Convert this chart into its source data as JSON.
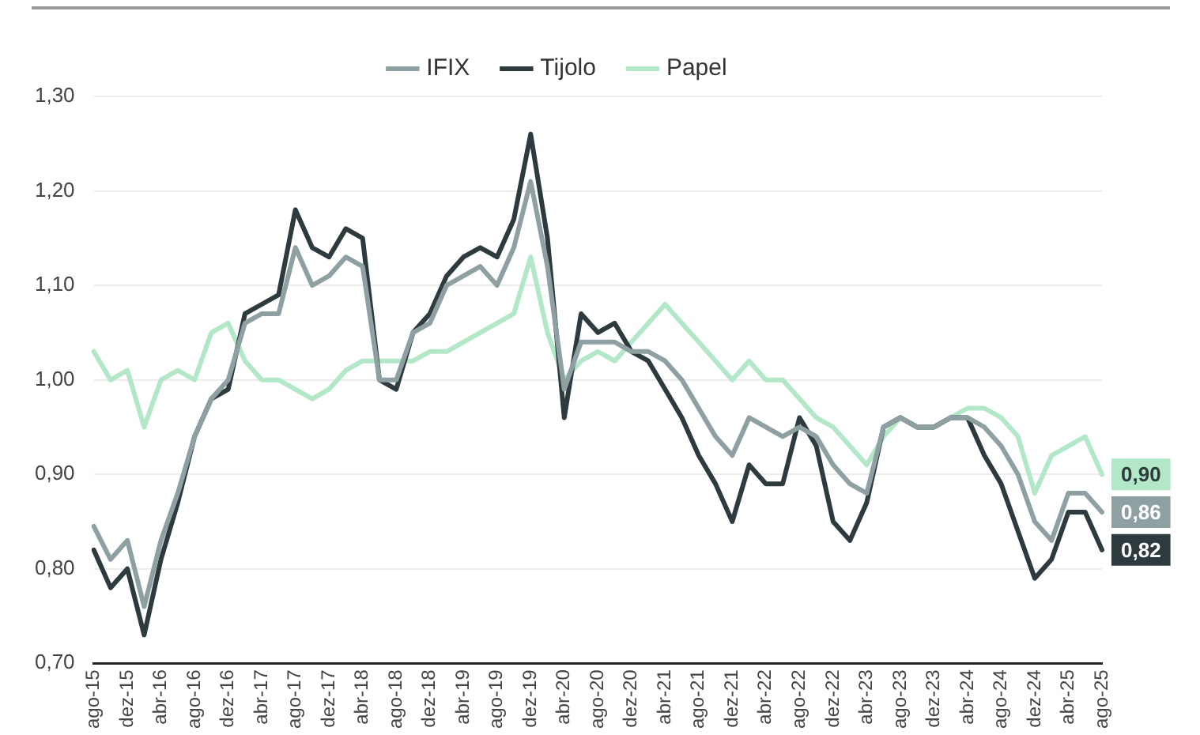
{
  "chart_data": {
    "type": "line",
    "categories": [
      "ago-15",
      null,
      "dez-15",
      null,
      "abr-16",
      null,
      "ago-16",
      null,
      "dez-16",
      null,
      "abr-17",
      null,
      "ago-17",
      null,
      "dez-17",
      null,
      "abr-18",
      null,
      "ago-18",
      null,
      "dez-18",
      null,
      "abr-19",
      null,
      "ago-19",
      null,
      "dez-19",
      null,
      "abr-20",
      null,
      "ago-20",
      null,
      "dez-20",
      null,
      "abr-21",
      null,
      "ago-21",
      null,
      "dez-21",
      null,
      "abr-22",
      null,
      "ago-22",
      null,
      "dez-22",
      null,
      "abr-23",
      null,
      "ago-23",
      null,
      "dez-23",
      null,
      "abr-24",
      null,
      "ago-24",
      null,
      "dez-24",
      null,
      "abr-25",
      null,
      "ago-25"
    ],
    "series": [
      {
        "name": "IFIX",
        "color": "#8fa0a3",
        "values": [
          0.845,
          0.81,
          0.83,
          0.76,
          0.83,
          0.88,
          0.94,
          0.98,
          1.0,
          1.06,
          1.07,
          1.07,
          1.14,
          1.1,
          1.11,
          1.13,
          1.12,
          1.0,
          1.0,
          1.05,
          1.06,
          1.1,
          1.11,
          1.12,
          1.1,
          1.14,
          1.21,
          1.12,
          0.99,
          1.04,
          1.04,
          1.04,
          1.03,
          1.03,
          1.02,
          1.0,
          0.97,
          0.94,
          0.92,
          0.96,
          0.95,
          0.94,
          0.95,
          0.94,
          0.91,
          0.89,
          0.88,
          0.95,
          0.96,
          0.95,
          0.95,
          0.96,
          0.96,
          0.95,
          0.93,
          0.9,
          0.85,
          0.83,
          0.88,
          0.88,
          0.86
        ],
        "value_labels": [
          null,
          null,
          null,
          null,
          null,
          null,
          null,
          null,
          null,
          null,
          null,
          null,
          null,
          null,
          null,
          null,
          null,
          null,
          null,
          null,
          null,
          null,
          null,
          null,
          null,
          null,
          null,
          null,
          null,
          null,
          null,
          null,
          null,
          null,
          null,
          null,
          null,
          null,
          null,
          null,
          null,
          null,
          null,
          null,
          null,
          null,
          null,
          null,
          null,
          null,
          null,
          null,
          null,
          null,
          null,
          null,
          null,
          null,
          null,
          null,
          "0,86"
        ]
      },
      {
        "name": "Tijolo",
        "color": "#2d3a3e",
        "values": [
          0.82,
          0.78,
          0.8,
          0.73,
          0.81,
          0.87,
          0.94,
          0.98,
          0.99,
          1.07,
          1.08,
          1.09,
          1.18,
          1.14,
          1.13,
          1.16,
          1.15,
          1.0,
          0.99,
          1.05,
          1.07,
          1.11,
          1.13,
          1.14,
          1.13,
          1.17,
          1.26,
          1.15,
          0.96,
          1.07,
          1.05,
          1.06,
          1.03,
          1.02,
          0.99,
          0.96,
          0.92,
          0.89,
          0.85,
          0.91,
          0.89,
          0.89,
          0.96,
          0.93,
          0.85,
          0.83,
          0.87,
          0.95,
          0.96,
          0.95,
          0.95,
          0.96,
          0.96,
          0.92,
          0.89,
          0.84,
          0.79,
          0.81,
          0.86,
          0.86,
          0.82
        ],
        "value_labels": [
          null,
          null,
          null,
          null,
          null,
          null,
          null,
          null,
          null,
          null,
          null,
          null,
          null,
          null,
          null,
          null,
          null,
          null,
          null,
          null,
          null,
          null,
          null,
          null,
          null,
          null,
          null,
          null,
          null,
          null,
          null,
          null,
          null,
          null,
          null,
          null,
          null,
          null,
          null,
          null,
          null,
          null,
          null,
          null,
          null,
          null,
          null,
          null,
          null,
          null,
          null,
          null,
          null,
          null,
          null,
          null,
          null,
          null,
          null,
          null,
          "0,82"
        ]
      },
      {
        "name": "Papel",
        "color": "#b2e8c8",
        "values": [
          1.03,
          1.0,
          1.01,
          0.95,
          1.0,
          1.01,
          1.0,
          1.05,
          1.06,
          1.02,
          1.0,
          1.0,
          0.99,
          0.98,
          0.99,
          1.01,
          1.02,
          1.02,
          1.02,
          1.02,
          1.03,
          1.03,
          1.04,
          1.05,
          1.06,
          1.07,
          1.13,
          1.05,
          1.0,
          1.02,
          1.03,
          1.02,
          1.04,
          1.06,
          1.08,
          1.06,
          1.04,
          1.02,
          1.0,
          1.02,
          1.0,
          1.0,
          0.98,
          0.96,
          0.95,
          0.93,
          0.91,
          0.94,
          0.96,
          0.95,
          0.95,
          0.96,
          0.97,
          0.97,
          0.96,
          0.94,
          0.88,
          0.92,
          0.93,
          0.94,
          0.9
        ],
        "value_labels": [
          null,
          null,
          null,
          null,
          null,
          null,
          null,
          null,
          null,
          null,
          null,
          null,
          null,
          null,
          null,
          null,
          null,
          null,
          null,
          null,
          null,
          null,
          null,
          null,
          null,
          null,
          null,
          null,
          null,
          null,
          null,
          null,
          null,
          null,
          null,
          null,
          null,
          null,
          null,
          null,
          null,
          null,
          null,
          null,
          null,
          null,
          null,
          null,
          null,
          null,
          null,
          null,
          null,
          null,
          null,
          null,
          null,
          null,
          null,
          null,
          "0,90"
        ]
      }
    ],
    "ylim": [
      0.7,
      1.3
    ],
    "yticks": [
      {
        "value": 0.7,
        "label": "0,70"
      },
      {
        "value": 0.8,
        "label": "0,80"
      },
      {
        "value": 0.9,
        "label": "0,90"
      },
      {
        "value": 1.0,
        "label": "1,00"
      },
      {
        "value": 1.1,
        "label": "1,10"
      },
      {
        "value": 1.2,
        "label": "1,20"
      },
      {
        "value": 1.3,
        "label": "1,30"
      }
    ],
    "grid": "y",
    "legend": "top",
    "marker": "none",
    "line_style": "solid"
  }
}
